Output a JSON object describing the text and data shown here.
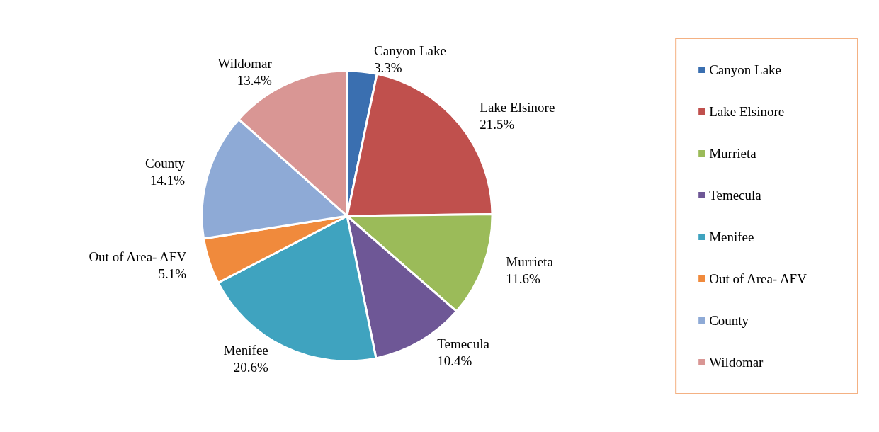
{
  "chart_data": {
    "type": "pie",
    "categories": [
      "Canyon Lake",
      "Lake Elsinore",
      "Murrieta",
      "Temecula",
      "Menifee",
      "Out of Area- AFV",
      "County",
      "Wildomar"
    ],
    "values": [
      3.3,
      21.5,
      11.6,
      10.4,
      20.6,
      5.1,
      14.1,
      13.4
    ],
    "value_labels": [
      "3.3%",
      "21.5%",
      "11.6%",
      "10.4%",
      "20.6%",
      "5.1%",
      "14.1%",
      "13.4%"
    ],
    "colors": [
      "#3a6fb0",
      "#c0504d",
      "#9bbb59",
      "#6e5796",
      "#3fa3bf",
      "#f08a3c",
      "#8eaad6",
      "#d99694"
    ],
    "legend": "right"
  }
}
